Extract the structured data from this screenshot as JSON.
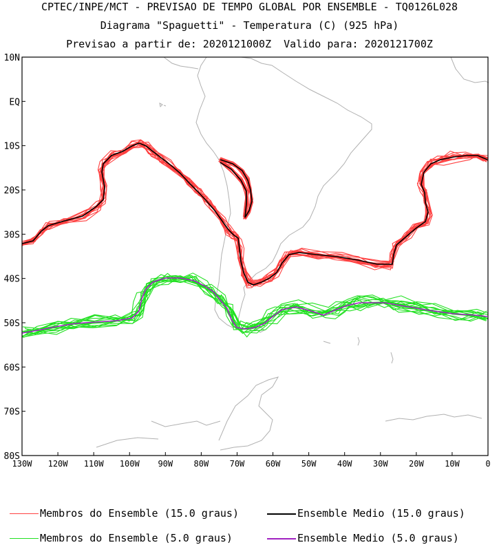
{
  "header": {
    "line1": "CPTEC/INPE/MCT - PREVISAO DE TEMPO GLOBAL POR ENSEMBLE - TQ0126L028",
    "line2": "Diagrama \"Spaguetti\" - Temperatura (C) (925 hPa)",
    "line3": "Previsao a partir de: 2020121000Z  Valido para: 2020121700Z"
  },
  "axes": {
    "lat_labels": [
      "10N",
      "EQ",
      "10S",
      "20S",
      "30S",
      "40S",
      "50S",
      "60S",
      "70S",
      "80S"
    ],
    "lon_labels": [
      "130W",
      "120W",
      "110W",
      "100W",
      "90W",
      "80W",
      "70W",
      "60W",
      "50W",
      "40W",
      "30W",
      "20W",
      "10W",
      "0"
    ]
  },
  "colors": {
    "member_15": "#ff4040",
    "mean_15": "#000000",
    "member_5": "#20e020",
    "mean_5": "#a020c0",
    "coast": "#b0b0b0"
  },
  "legend": [
    {
      "label": "Membros do Ensemble (15.0 graus)",
      "color": "#ff4040"
    },
    {
      "label": "Ensemble Medio (15.0 graus)",
      "color": "#000000"
    },
    {
      "label": "Membros do Ensemble (5.0 graus)",
      "color": "#20e020"
    },
    {
      "label": "Ensemble Medio (5.0 graus)",
      "color": "#a020c0"
    }
  ]
}
